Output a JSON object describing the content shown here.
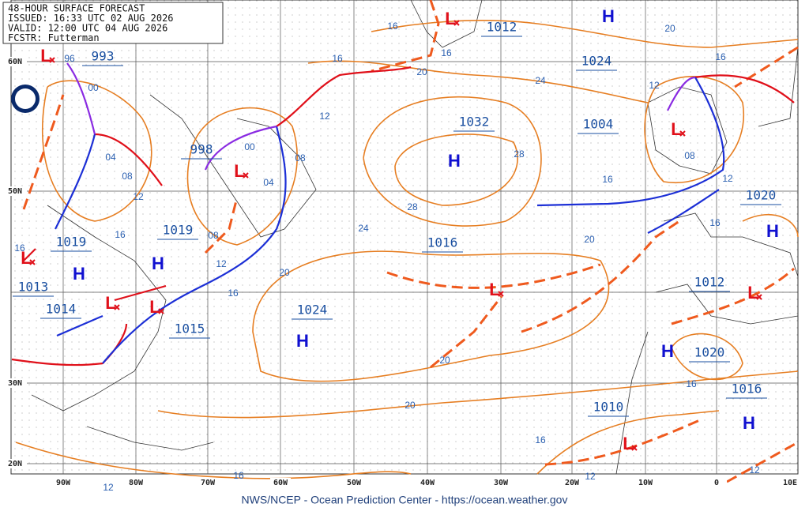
{
  "header": {
    "lines": [
      "48-HOUR SURFACE FORECAST",
      "ISSUED: 16:33 UTC 02 AUG 2026",
      "VALID: 12:00 UTC 04 AUG 2026",
      "FCSTR: Futterman"
    ]
  },
  "lat_labels": [
    "60N",
    "50N",
    "30N",
    "20N"
  ],
  "lon_labels": [
    "90W",
    "80W",
    "70W",
    "60W",
    "50W",
    "40W",
    "30W",
    "20W",
    "10W",
    "0",
    "10E"
  ],
  "pressure_labels": [
    "993",
    "1012",
    "1024",
    "1032",
    "1004",
    "998",
    "1019",
    "1019",
    "1016",
    "1020",
    "1013",
    "1014",
    "1015",
    "1024",
    "1012",
    "1020",
    "1016",
    "1010"
  ],
  "highs": [
    "H",
    "H",
    "H",
    "H",
    "H",
    "H",
    "H",
    "H"
  ],
  "lows": [
    "L",
    "L",
    "L",
    "L",
    "L",
    "L",
    "L",
    "L",
    "L",
    "L"
  ],
  "isobar_labels": [
    "16",
    "16",
    "16",
    "20",
    "16",
    "96",
    "00",
    "20",
    "24",
    "12",
    "12",
    "04",
    "08",
    "12",
    "00",
    "08",
    "04",
    "28",
    "28",
    "08",
    "12",
    "16",
    "24",
    "16",
    "08",
    "12",
    "16",
    "20",
    "16",
    "20",
    "16",
    "20",
    "20",
    "16",
    "16",
    "12",
    "16",
    "12",
    "12"
  ],
  "footer": "NWS/NCEP - Ocean Prediction Center - https://ocean.weather.gov"
}
